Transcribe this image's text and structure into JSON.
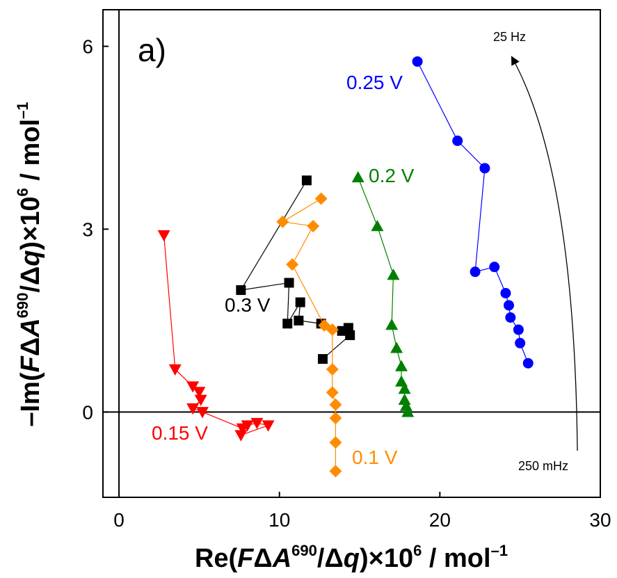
{
  "chart_data": {
    "type": "scatter",
    "panel_label": "a)",
    "xlabel": {
      "pre": "Re(",
      "F": "F",
      "delta": "Δ",
      "A": "A",
      "sup": "690",
      "slash": "/",
      "delta2": "Δ",
      "q": "q",
      "post": ")×10",
      "exp": "6",
      "unit": " / mol",
      "unit_exp": "–1"
    },
    "ylabel": {
      "pre": "–Im(",
      "F": "F",
      "delta": "Δ",
      "A": "A",
      "sup": "690",
      "slash": "/",
      "delta2": "Δ",
      "q": "q",
      "post": ")×10",
      "exp": "6",
      "unit": " / mol",
      "unit_exp": "–1"
    },
    "xlim": [
      -1,
      30
    ],
    "ylim": [
      -1.4,
      6.6
    ],
    "xticks": [
      0,
      10,
      20,
      30
    ],
    "yticks": [
      0,
      3,
      6
    ],
    "reference_lines": {
      "x": 0,
      "y": 0
    },
    "freq_annotation": {
      "high": "25 Hz",
      "low": "250 mHz"
    },
    "series": [
      {
        "name": "0.25 V",
        "color": "#0000ff",
        "marker": "circle",
        "label_color": "#0000ff",
        "points": [
          [
            18.6,
            5.75
          ],
          [
            21.1,
            4.45
          ],
          [
            22.8,
            4.0
          ],
          [
            22.2,
            2.3
          ],
          [
            23.4,
            2.38
          ],
          [
            24.1,
            1.95
          ],
          [
            24.3,
            1.75
          ],
          [
            24.4,
            1.55
          ],
          [
            24.9,
            1.35
          ],
          [
            25.0,
            1.13
          ],
          [
            25.5,
            0.8
          ]
        ]
      },
      {
        "name": "0.2 V",
        "color": "#008000",
        "marker": "triangle-up",
        "label_color": "#008000",
        "points": [
          [
            14.9,
            3.85
          ],
          [
            16.1,
            3.05
          ],
          [
            17.1,
            2.25
          ],
          [
            17.0,
            1.43
          ],
          [
            17.3,
            1.05
          ],
          [
            17.6,
            0.75
          ],
          [
            17.6,
            0.5
          ],
          [
            17.8,
            0.38
          ],
          [
            17.8,
            0.2
          ],
          [
            17.9,
            0.1
          ],
          [
            18.0,
            0.0
          ]
        ]
      },
      {
        "name": "0.3 V",
        "color": "#000000",
        "marker": "square",
        "label_color": "#000000",
        "points": [
          [
            11.7,
            3.8
          ],
          [
            7.6,
            2.0
          ],
          [
            10.6,
            2.12
          ],
          [
            10.5,
            1.45
          ],
          [
            11.3,
            1.8
          ],
          [
            11.2,
            1.5
          ],
          [
            12.6,
            1.45
          ],
          [
            13.9,
            1.33
          ],
          [
            14.3,
            1.38
          ],
          [
            14.4,
            1.26
          ],
          [
            12.7,
            0.87
          ]
        ]
      },
      {
        "name": "0.1 V",
        "color": "#ff8c00",
        "marker": "diamond",
        "label_color": "#ff8c00",
        "points": [
          [
            12.6,
            3.5
          ],
          [
            10.2,
            3.12
          ],
          [
            12.1,
            3.05
          ],
          [
            10.8,
            2.42
          ],
          [
            12.8,
            1.42
          ],
          [
            13.3,
            1.35
          ],
          [
            13.3,
            0.7
          ],
          [
            13.3,
            0.32
          ],
          [
            13.5,
            0.12
          ],
          [
            13.5,
            -0.1
          ],
          [
            13.5,
            -0.5
          ],
          [
            13.5,
            -0.97
          ]
        ]
      },
      {
        "name": "0.15 V",
        "color": "#ff0000",
        "marker": "triangle-down",
        "label_color": "#ff0000",
        "points": [
          [
            2.8,
            2.9
          ],
          [
            3.5,
            0.7
          ],
          [
            4.6,
            0.42
          ],
          [
            5.0,
            0.33
          ],
          [
            5.1,
            0.2
          ],
          [
            4.6,
            0.06
          ],
          [
            5.2,
            0.0
          ],
          [
            7.7,
            -0.27
          ],
          [
            8.0,
            -0.22
          ],
          [
            8.6,
            -0.18
          ],
          [
            9.3,
            -0.22
          ],
          [
            7.6,
            -0.38
          ]
        ]
      }
    ]
  }
}
